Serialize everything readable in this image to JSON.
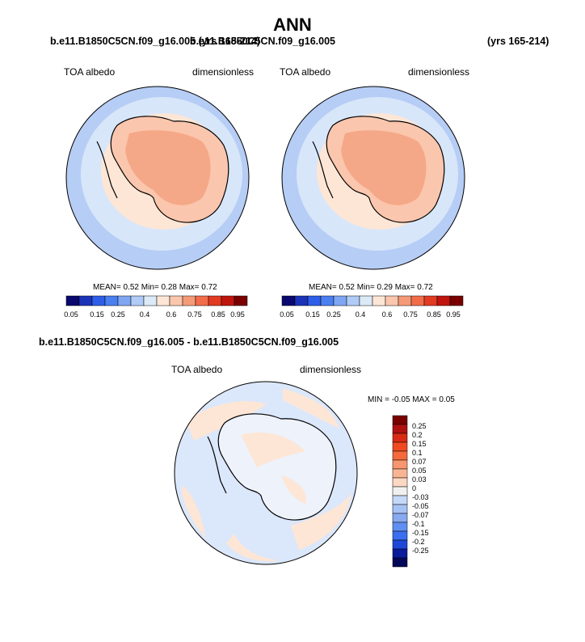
{
  "page": {
    "title": "ANN",
    "case1_title": "b.e11.B1850C5CN.f09_g16.005 (yrs 165-214)",
    "case2_title": "b.e11.B1850C5CN.f09_g16.005",
    "case2_years": "(yrs 165-214)",
    "diff_title": "b.e11.B1850C5CN.f09_g16.005 - b.e11.B1850C5CN.f09_g16.005"
  },
  "panels": [
    {
      "variable": "TOA albedo",
      "units": "dimensionless",
      "stats": {
        "mean_label": "MEAN=",
        "mean": "0.52",
        "min_label": "Min=",
        "min": "0.28",
        "max_label": "Max=",
        "max": "0.72"
      }
    },
    {
      "variable": "TOA albedo",
      "units": "dimensionless",
      "stats": {
        "mean_label": "MEAN=",
        "mean": "0.52",
        "min_label": "Min=",
        "min": "0.29",
        "max_label": "Max=",
        "max": "0.72"
      }
    }
  ],
  "diff_panel": {
    "variable": "TOA albedo",
    "units": "dimensionless",
    "range_text": "MIN = -0.05 MAX = 0.05"
  },
  "colorbar": {
    "colors": [
      "#08086e",
      "#1a33b8",
      "#2e5ee8",
      "#4a7ff0",
      "#7fa6f2",
      "#b0cbf5",
      "#dceaf8",
      "#fde6d6",
      "#fac6ad",
      "#f59a77",
      "#f26c4a",
      "#e33a22",
      "#c0150e",
      "#7a0000"
    ],
    "ticks": [
      "0.05",
      "0.15",
      "0.25",
      "0.4",
      "0.6",
      "0.75",
      "0.85",
      "0.95"
    ]
  },
  "diff_colorbar": {
    "colors": [
      "#7a0000",
      "#b01010",
      "#d82a14",
      "#f04a20",
      "#f56a3a",
      "#f79670",
      "#f9b592",
      "#fcd8c2",
      "#f0f0f0",
      "#c6d8f7",
      "#a6c2f4",
      "#86a9f1",
      "#5f8ff0",
      "#3a6fef",
      "#2048d8",
      "#0a1c9a",
      "#04085a"
    ],
    "labels": [
      "0.25",
      "0.2",
      "0.15",
      "0.1",
      "0.07",
      "0.05",
      "0.03",
      "0",
      "-0.03",
      "-0.05",
      "-0.07",
      "-0.1",
      "-0.15",
      "-0.2",
      "-0.25"
    ]
  }
}
